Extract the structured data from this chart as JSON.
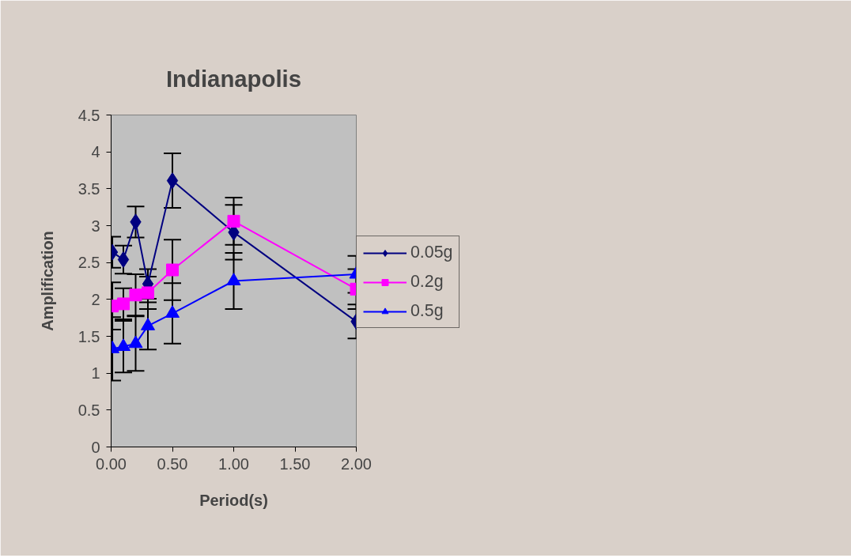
{
  "chart_data": {
    "type": "line",
    "title": "Indianapolis",
    "xlabel": "Period(s)",
    "ylabel": "Amplification",
    "x": [
      0.01,
      0.1,
      0.2,
      0.3,
      0.5,
      1.0,
      2.0
    ],
    "series": [
      {
        "name": "0.05g",
        "color": "#000080",
        "marker": "diamond",
        "values": [
          2.64,
          2.54,
          3.05,
          2.21,
          3.61,
          2.91,
          1.7
        ],
        "errors": [
          0.21,
          0.19,
          0.21,
          0.2,
          0.37,
          0.37,
          0.23
        ]
      },
      {
        "name": "0.2g",
        "color": "#ff00ff",
        "marker": "square",
        "values": [
          1.91,
          1.94,
          2.06,
          2.09,
          2.4,
          3.06,
          2.14
        ],
        "errors": [
          0.32,
          0.21,
          0.28,
          0.22,
          0.41,
          0.32,
          0.27
        ]
      },
      {
        "name": "0.5g",
        "color": "#0000ff",
        "marker": "triangle",
        "values": [
          1.33,
          1.36,
          1.4,
          1.64,
          1.81,
          2.25,
          2.34
        ],
        "errors": [
          0.43,
          0.35,
          0.37,
          0.32,
          0.41,
          0.38,
          0.25
        ]
      }
    ],
    "xlim": [
      0,
      2.0
    ],
    "ylim": [
      0,
      4.5
    ],
    "xticks": [
      {
        "value": 0,
        "label": "0.00"
      },
      {
        "value": 0.5,
        "label": "0.50"
      },
      {
        "value": 1.0,
        "label": "1.00"
      },
      {
        "value": 1.5,
        "label": "1.50"
      },
      {
        "value": 2.0,
        "label": "2.00"
      }
    ],
    "yticks": [
      0,
      0.5,
      1,
      1.5,
      2,
      2.5,
      3,
      3.5,
      4,
      4.5
    ],
    "grid": false,
    "legend": "right"
  }
}
